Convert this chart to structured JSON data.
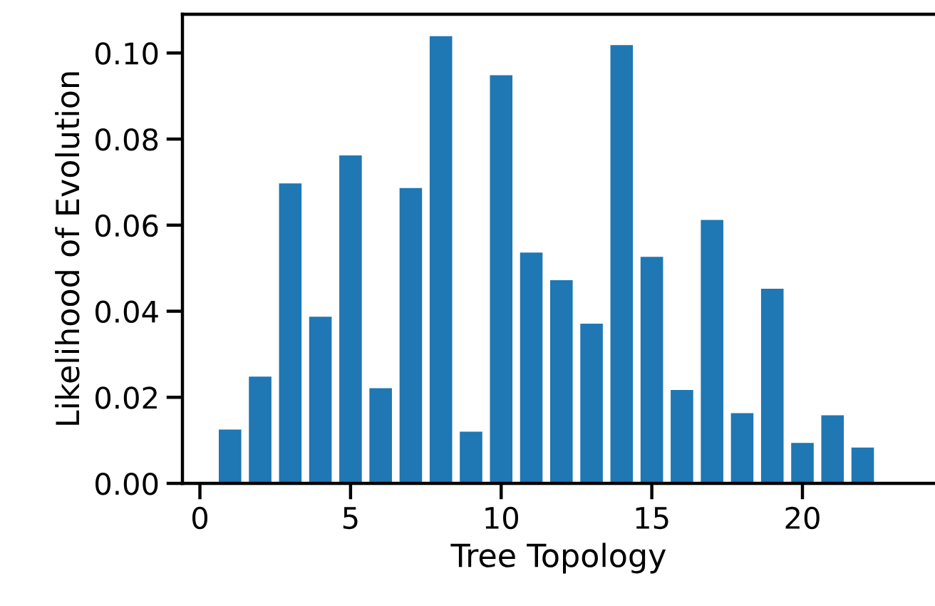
{
  "chart_data": {
    "type": "bar",
    "xlabel": "Tree Topology",
    "ylabel": "Likelihood of Evolution",
    "x": [
      1,
      2,
      3,
      4,
      5,
      6,
      7,
      8,
      9,
      10,
      11,
      12,
      13,
      14,
      15,
      16,
      17,
      18,
      19,
      20,
      21,
      22
    ],
    "values": [
      0.0127,
      0.025,
      0.0699,
      0.0389,
      0.0764,
      0.0223,
      0.0688,
      0.1041,
      0.0122,
      0.095,
      0.0538,
      0.0474,
      0.0373,
      0.102,
      0.0528,
      0.0219,
      0.0614,
      0.0165,
      0.0454,
      0.0096,
      0.016,
      0.0085
    ],
    "color": "#1f77b4",
    "xlim": [
      -0.58,
      24.4
    ],
    "xticks": [
      0,
      5,
      10,
      15,
      20
    ],
    "ylim": [
      0,
      0.109
    ],
    "yticks": [
      {
        "value": 0,
        "label": "0.00"
      },
      {
        "value": 0.02,
        "label": "0.02"
      },
      {
        "value": 0.04,
        "label": "0.04"
      },
      {
        "value": 0.06,
        "label": "0.06"
      },
      {
        "value": 0.08,
        "label": "0.08"
      },
      {
        "value": 0.1,
        "label": "0.10"
      }
    ],
    "grid": false
  }
}
